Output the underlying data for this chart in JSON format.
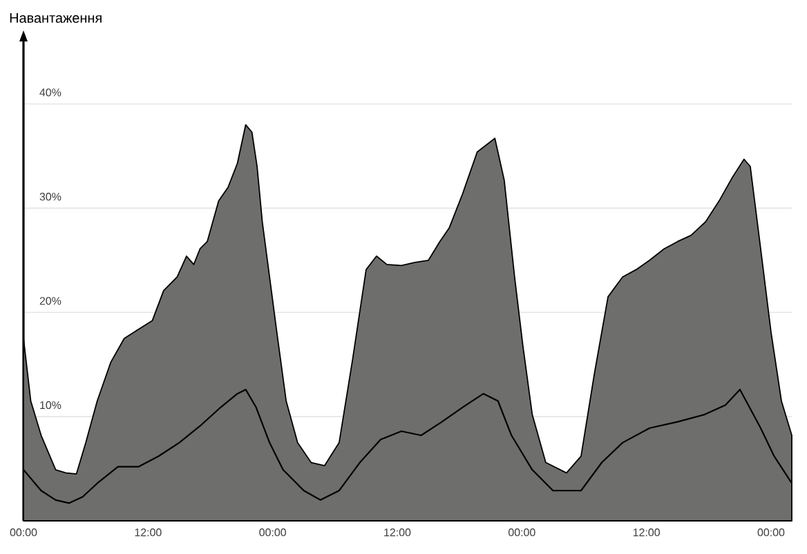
{
  "chart_data": {
    "type": "area",
    "ylabel": "Навантаження",
    "xlim": [
      "--01-01T00:00",
      "--01-04T02:00"
    ],
    "ylim": [
      0,
      46
    ],
    "xticks": [
      {
        "value": "--01-01T00:00",
        "label": "00:00"
      },
      {
        "value": "--01-01T12:00",
        "label": "12:00"
      },
      {
        "value": "--01-02T00:00",
        "label": "00:00"
      },
      {
        "value": "--01-02T12:00",
        "label": "12:00"
      },
      {
        "value": "--01-03T00:00",
        "label": "00:00"
      },
      {
        "value": "--01-03T12:00",
        "label": "12:00"
      },
      {
        "value": "--01-04T00:00",
        "label": "00:00"
      }
    ],
    "yticks": [
      {
        "value": 10,
        "label": "10%"
      },
      {
        "value": 20,
        "label": "20%"
      },
      {
        "value": 30,
        "label": "30%"
      },
      {
        "value": 40,
        "label": "40%"
      }
    ],
    "grid": "y",
    "series": [
      {
        "type": "area",
        "color": "#6e6e6d",
        "x": [
          "--01-01T00:00",
          "--01-01T00:42",
          "--01-01T01:42",
          "--01-01T03:06",
          "--01-01T04:06",
          "--01-01T05:06",
          "--01-01T06:00",
          "--01-01T07:06",
          "--01-01T08:24",
          "--01-01T09:42",
          "--01-01T11:06",
          "--01-01T12:24",
          "--01-01T13:30",
          "--01-01T14:48",
          "--01-01T15:42",
          "--01-01T16:24",
          "--01-01T17:00",
          "--01-01T17:42",
          "--01-01T18:48",
          "--01-01T19:42",
          "--01-01T20:36",
          "--01-01T21:24",
          "--01-01T22:00",
          "--01-01T22:30",
          "--01-01T23:00",
          "--01-01T23:42",
          "--01-02T00:24",
          "--01-02T01:18",
          "--01-02T02:24",
          "--01-02T03:42",
          "--01-02T05:00",
          "--01-02T06:24",
          "--01-02T07:42",
          "--01-02T09:00",
          "--01-02T10:00",
          "--01-02T11:00",
          "--01-02T12:24",
          "--01-02T13:42",
          "--01-02T15:00",
          "--01-02T16:06",
          "--01-02T17:00",
          "--01-02T18:18",
          "--01-02T19:42",
          "--01-02T21:24",
          "--01-02T22:18",
          "--01-02T23:18",
          "--01-03T00:06",
          "--01-03T01:00",
          "--01-03T02:18",
          "--01-03T04:18",
          "--01-03T05:42",
          "--01-03T07:00",
          "--01-03T08:18",
          "--01-03T09:42",
          "--01-03T11:00",
          "--01-03T12:18",
          "--01-03T13:42",
          "--01-03T15:00",
          "--01-03T16:18",
          "--01-03T17:42",
          "--01-03T19:00",
          "--01-03T20:18",
          "--01-03T21:24",
          "--01-03T22:00",
          "--01-03T23:00",
          "--01-04T00:00",
          "--01-04T01:00",
          "--01-04T02:00"
        ],
        "values": [
          17.5,
          11.5,
          8.2,
          4.9,
          4.6,
          4.5,
          7.5,
          11.5,
          15.2,
          17.5,
          18.4,
          19.2,
          22.1,
          23.4,
          25.4,
          24.6,
          26.1,
          26.8,
          30.7,
          32,
          34.3,
          38,
          37.3,
          34,
          28.7,
          23.4,
          18.1,
          11.5,
          7.5,
          5.6,
          5.3,
          7.5,
          15.5,
          24.1,
          25.4,
          24.6,
          24.5,
          24.8,
          25,
          26.8,
          28.1,
          31.4,
          35.4,
          36.7,
          32.7,
          23.4,
          16.8,
          10.2,
          5.6,
          4.6,
          6.2,
          14.2,
          21.5,
          23.4,
          24.1,
          25,
          26.1,
          26.8,
          27.4,
          28.7,
          30.7,
          33,
          34.7,
          34,
          26.1,
          18.1,
          11.5,
          8.2
        ]
      },
      {
        "type": "line",
        "color": "#000000",
        "x": [
          "--01-01T00:00",
          "--01-01T01:42",
          "--01-01T03:06",
          "--01-01T04:24",
          "--01-01T05:42",
          "--01-01T07:06",
          "--01-01T09:06",
          "--01-01T11:06",
          "--01-01T13:00",
          "--01-01T15:00",
          "--01-01T17:00",
          "--01-01T19:00",
          "--01-01T20:36",
          "--01-01T21:24",
          "--01-01T22:24",
          "--01-01T23:42",
          "--01-02T01:00",
          "--01-02T03:00",
          "--01-02T04:36",
          "--01-02T06:24",
          "--01-02T08:24",
          "--01-02T10:24",
          "--01-02T12:24",
          "--01-02T14:18",
          "--01-02T16:18",
          "--01-02T18:18",
          "--01-02T20:18",
          "--01-02T21:42",
          "--01-02T23:00",
          "--01-03T01:00",
          "--01-03T03:00",
          "--01-03T05:42",
          "--01-03T07:42",
          "--01-03T09:42",
          "--01-03T12:18",
          "--01-03T15:00",
          "--01-03T17:36",
          "--01-03T19:36",
          "--01-03T21:00",
          "--01-03T21:36",
          "--01-03T23:00",
          "--01-04T00:18",
          "--01-04T02:00"
        ],
        "values": [
          4.9,
          2.9,
          2,
          1.7,
          2.3,
          3.6,
          5.2,
          5.2,
          6.2,
          7.5,
          9.1,
          10.9,
          12.2,
          12.6,
          10.9,
          7.5,
          4.9,
          2.9,
          2,
          2.9,
          5.6,
          7.8,
          8.6,
          8.2,
          9.5,
          10.9,
          12.2,
          11.5,
          8.2,
          4.9,
          2.9,
          2.9,
          5.6,
          7.5,
          8.9,
          9.5,
          10.2,
          11.1,
          12.6,
          11.5,
          8.9,
          6.2,
          3.6
        ]
      }
    ]
  }
}
